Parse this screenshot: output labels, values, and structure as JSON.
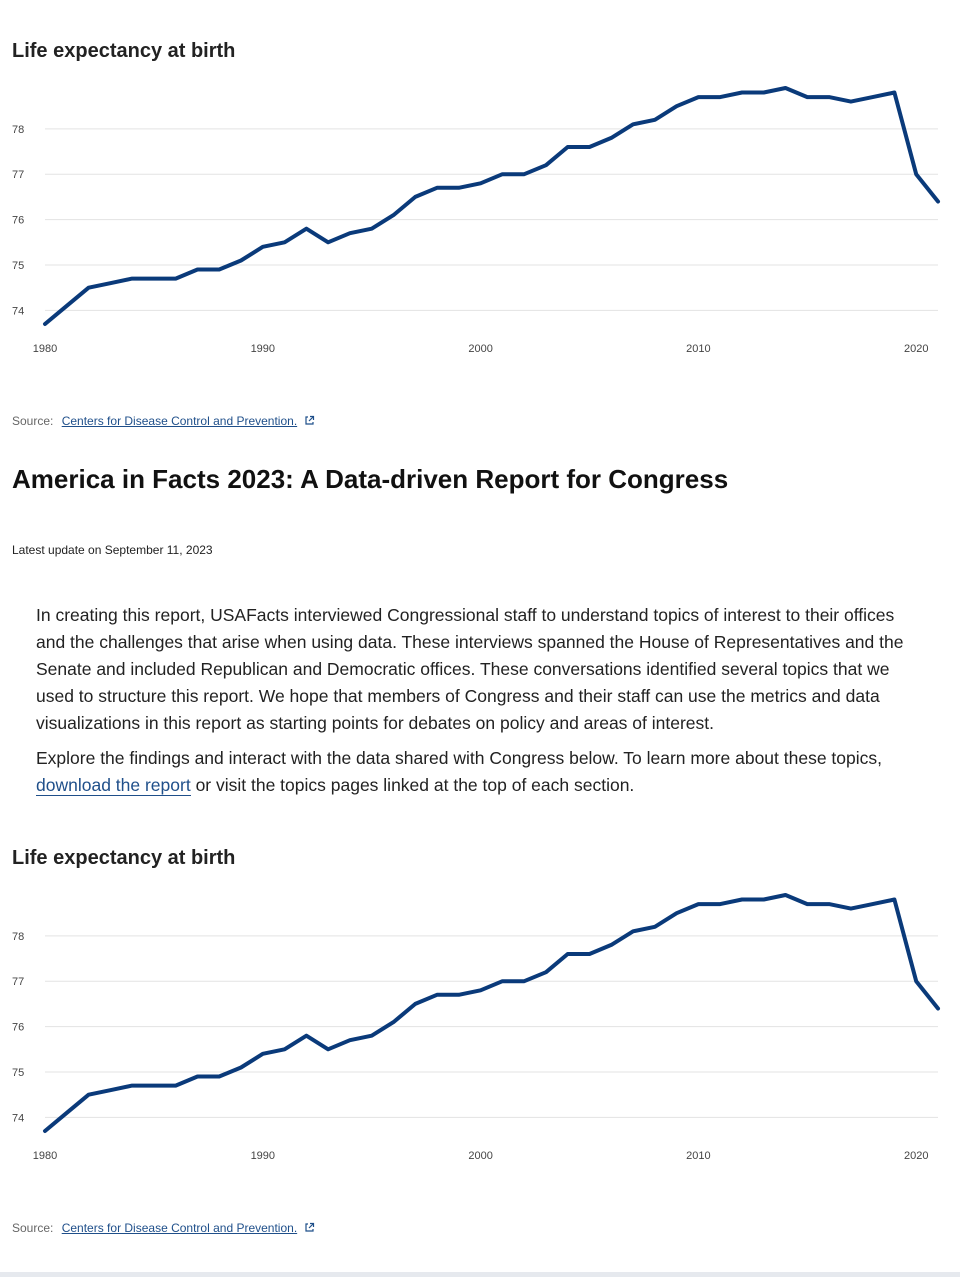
{
  "charts": [
    {
      "title": "Life expectancy at birth",
      "source_label": "Source:",
      "source_link": "Centers for Disease Control and Prevention."
    },
    {
      "title": "Life expectancy at birth",
      "source_label": "Source:",
      "source_link": "Centers for Disease Control and Prevention."
    }
  ],
  "report": {
    "title": "America in Facts 2023: A Data-driven Report for Congress",
    "update": "Latest update on September 11, 2023",
    "paragraph1": "In creating this report, USAFacts interviewed Congressional staff to understand topics of interest to their offices and the challenges that arise when using data. These interviews spanned the House of Representatives and the Senate and included Republican and Democratic offices. These conversations identified several topics that we used to structure this report. We hope that members of Congress and their staff can use the metrics and data visualizations in this report as starting points for debates on policy and areas of interest.",
    "paragraph2_before": "Explore the findings and interact with the data shared with Congress below. To learn more about these topics, ",
    "paragraph2_link": "download the report",
    "paragraph2_after": " or visit the topics pages linked at the top of each section."
  },
  "colors": {
    "line": "#0a3a7a",
    "grid": "#e3e3e3",
    "link": "#1f4f8a"
  },
  "icons": {
    "external": "external-link-icon"
  },
  "chart_data": [
    {
      "type": "line",
      "title": "Life expectancy at birth",
      "xlabel": "",
      "ylabel": "",
      "xlim": [
        1980,
        2021
      ],
      "ylim": [
        73.7,
        78.9
      ],
      "xticks": [
        1980,
        1990,
        2000,
        2010,
        2020
      ],
      "yticks": [
        74,
        75,
        76,
        77,
        78
      ],
      "grid": true,
      "series": [
        {
          "x": [
            1980,
            1981,
            1982,
            1983,
            1984,
            1985,
            1986,
            1987,
            1988,
            1989,
            1990,
            1991,
            1992,
            1993,
            1994,
            1995,
            1996,
            1997,
            1998,
            1999,
            2000,
            2001,
            2002,
            2003,
            2004,
            2005,
            2006,
            2007,
            2008,
            2009,
            2010,
            2011,
            2012,
            2013,
            2014,
            2015,
            2016,
            2017,
            2018,
            2019,
            2020,
            2021
          ],
          "values": [
            73.7,
            74.1,
            74.5,
            74.6,
            74.7,
            74.7,
            74.7,
            74.9,
            74.9,
            75.1,
            75.4,
            75.5,
            75.8,
            75.5,
            75.7,
            75.8,
            76.1,
            76.5,
            76.7,
            76.7,
            76.8,
            77.0,
            77.0,
            77.2,
            77.6,
            77.6,
            77.8,
            78.1,
            78.2,
            78.5,
            78.7,
            78.7,
            78.8,
            78.8,
            78.9,
            78.7,
            78.7,
            78.6,
            78.7,
            78.8,
            77.0,
            76.4
          ]
        }
      ]
    },
    {
      "type": "line",
      "title": "Life expectancy at birth",
      "xlabel": "",
      "ylabel": "",
      "xlim": [
        1980,
        2021
      ],
      "ylim": [
        73.7,
        78.9
      ],
      "xticks": [
        1980,
        1990,
        2000,
        2010,
        2020
      ],
      "yticks": [
        74,
        75,
        76,
        77,
        78
      ],
      "grid": true,
      "series": [
        {
          "x": [
            1980,
            1981,
            1982,
            1983,
            1984,
            1985,
            1986,
            1987,
            1988,
            1989,
            1990,
            1991,
            1992,
            1993,
            1994,
            1995,
            1996,
            1997,
            1998,
            1999,
            2000,
            2001,
            2002,
            2003,
            2004,
            2005,
            2006,
            2007,
            2008,
            2009,
            2010,
            2011,
            2012,
            2013,
            2014,
            2015,
            2016,
            2017,
            2018,
            2019,
            2020,
            2021
          ],
          "values": [
            73.7,
            74.1,
            74.5,
            74.6,
            74.7,
            74.7,
            74.7,
            74.9,
            74.9,
            75.1,
            75.4,
            75.5,
            75.8,
            75.5,
            75.7,
            75.8,
            76.1,
            76.5,
            76.7,
            76.7,
            76.8,
            77.0,
            77.0,
            77.2,
            77.6,
            77.6,
            77.8,
            78.1,
            78.2,
            78.5,
            78.7,
            78.7,
            78.8,
            78.8,
            78.9,
            78.7,
            78.7,
            78.6,
            78.7,
            78.8,
            77.0,
            76.4
          ]
        }
      ]
    }
  ]
}
